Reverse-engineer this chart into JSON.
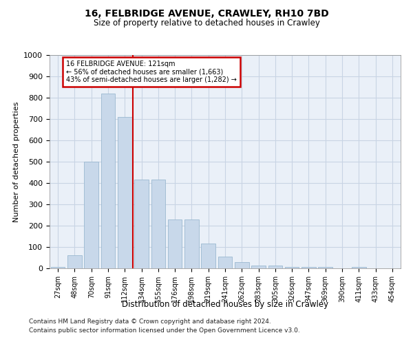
{
  "title1": "16, FELBRIDGE AVENUE, CRAWLEY, RH10 7BD",
  "title2": "Size of property relative to detached houses in Crawley",
  "xlabel": "Distribution of detached houses by size in Crawley",
  "ylabel": "Number of detached properties",
  "categories": [
    "27sqm",
    "48sqm",
    "70sqm",
    "91sqm",
    "112sqm",
    "134sqm",
    "155sqm",
    "176sqm",
    "198sqm",
    "219sqm",
    "241sqm",
    "262sqm",
    "283sqm",
    "305sqm",
    "326sqm",
    "347sqm",
    "369sqm",
    "390sqm",
    "411sqm",
    "433sqm",
    "454sqm"
  ],
  "values": [
    5,
    60,
    500,
    820,
    710,
    415,
    415,
    230,
    230,
    115,
    55,
    30,
    12,
    12,
    8,
    8,
    5,
    0,
    8,
    0,
    0
  ],
  "bar_color": "#c8d8ea",
  "bar_edge_color": "#9ab8d0",
  "grid_color": "#c8d4e4",
  "bg_color": "#eaf0f8",
  "red_line_x": 4.5,
  "annotation_line1": "16 FELBRIDGE AVENUE: 121sqm",
  "annotation_line2": "← 56% of detached houses are smaller (1,663)",
  "annotation_line3": "43% of semi-detached houses are larger (1,282) →",
  "annotation_box_color": "#ffffff",
  "annotation_border_color": "#cc0000",
  "ylim": [
    0,
    1000
  ],
  "yticks": [
    0,
    100,
    200,
    300,
    400,
    500,
    600,
    700,
    800,
    900,
    1000
  ],
  "footnote1": "Contains HM Land Registry data © Crown copyright and database right 2024.",
  "footnote2": "Contains public sector information licensed under the Open Government Licence v3.0."
}
